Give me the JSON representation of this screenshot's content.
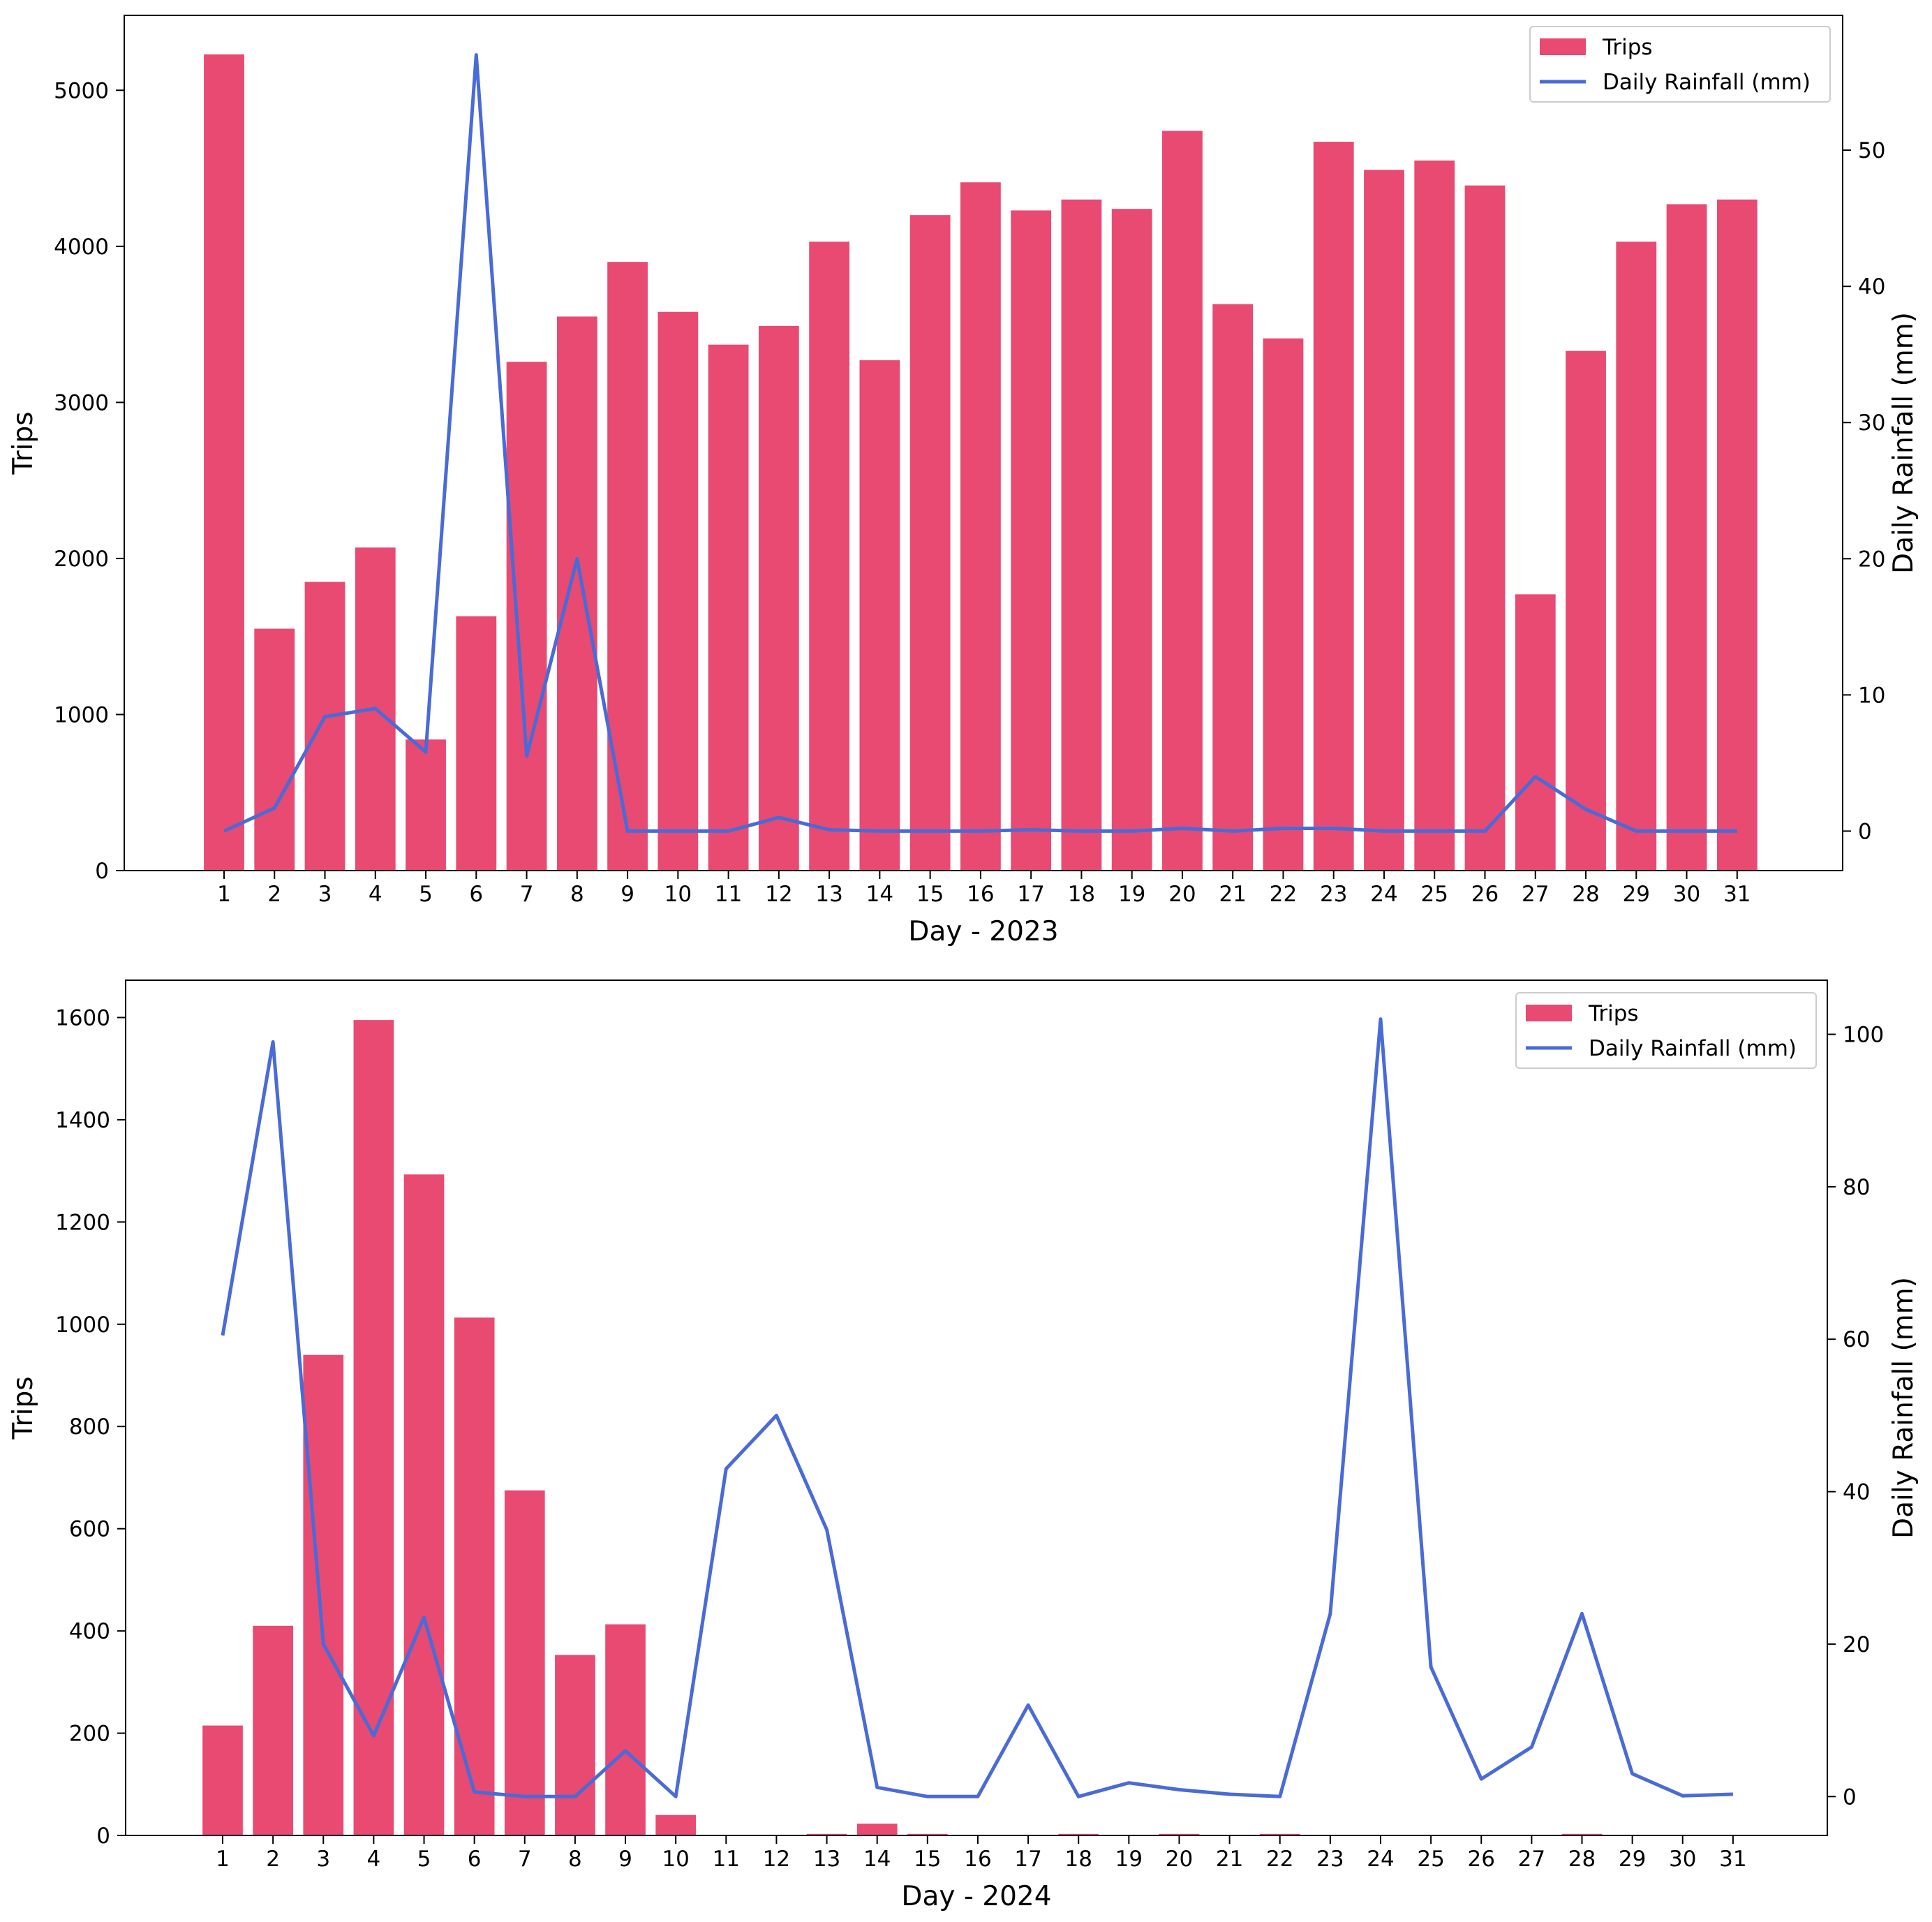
{
  "colors": {
    "bar": "#e84a72",
    "line": "#4a6bd6",
    "axis": "#000000",
    "background": "#ffffff"
  },
  "chart_data": [
    {
      "type": "bar",
      "combo": "bar+line (dual y-axis)",
      "categories": [
        "1",
        "2",
        "3",
        "4",
        "5",
        "6",
        "7",
        "8",
        "9",
        "10",
        "11",
        "12",
        "13",
        "14",
        "15",
        "16",
        "17",
        "18",
        "19",
        "20",
        "21",
        "22",
        "23",
        "24",
        "25",
        "26",
        "27",
        "28",
        "29",
        "30",
        "31"
      ],
      "series": [
        {
          "name": "Trips",
          "type": "bar",
          "axis": "left",
          "values": [
            5230,
            1550,
            1850,
            2070,
            840,
            1630,
            3260,
            3550,
            3900,
            3580,
            3370,
            3490,
            4030,
            3270,
            4200,
            4410,
            4230,
            4300,
            4240,
            4740,
            3630,
            3410,
            4670,
            4490,
            4550,
            4390,
            1770,
            3330,
            4030,
            4270,
            4300
          ]
        },
        {
          "name": "Daily Rainfall (mm)",
          "type": "line",
          "axis": "right",
          "values": [
            0,
            1.7,
            8.4,
            9.0,
            5.8,
            57,
            5.5,
            20,
            0,
            0,
            0,
            1,
            0.1,
            0,
            0,
            0,
            0.1,
            0,
            0,
            0.2,
            0,
            0.2,
            0.2,
            0,
            0,
            0,
            4,
            1.6,
            0,
            0,
            0
          ]
        }
      ],
      "xlabel": "Day - 2023",
      "ylabel": "Trips",
      "ylabel_right": "Daily Rainfall (mm)",
      "ylim": [
        0,
        5480
      ],
      "ylim_right": [
        -2.9,
        59.9
      ],
      "yticks": [
        "0",
        "1000",
        "2000",
        "3000",
        "4000",
        "5000"
      ],
      "yticks_right": [
        "0",
        "10",
        "20",
        "30",
        "40",
        "50"
      ],
      "legend": [
        "Trips",
        "Daily Rainfall (mm)"
      ],
      "legend_position": "upper right",
      "grid": false
    },
    {
      "type": "bar",
      "combo": "bar+line (dual y-axis)",
      "categories": [
        "1",
        "2",
        "3",
        "4",
        "5",
        "6",
        "7",
        "8",
        "9",
        "10",
        "11",
        "12",
        "13",
        "14",
        "15",
        "16",
        "17",
        "18",
        "19",
        "20",
        "21",
        "22",
        "23",
        "24",
        "25",
        "26",
        "27",
        "28",
        "29",
        "30",
        "31"
      ],
      "series": [
        {
          "name": "Trips",
          "type": "bar",
          "axis": "left",
          "values": [
            215,
            410,
            940,
            1595,
            1293,
            1013,
            675,
            353,
            413,
            40,
            0,
            0,
            3,
            23,
            3,
            0,
            0,
            3,
            0,
            3,
            0,
            3,
            0,
            0,
            0,
            0,
            0,
            3,
            0,
            0,
            0
          ]
        },
        {
          "name": "Daily Rainfall (mm)",
          "type": "line",
          "axis": "right",
          "values": [
            60.5,
            99,
            20,
            8,
            23.5,
            0.6,
            0,
            0,
            6,
            0,
            43,
            50,
            35,
            1.2,
            0,
            0,
            12,
            0,
            1.8,
            0.9,
            0.3,
            0,
            24,
            102,
            17,
            2.3,
            6.5,
            24,
            3,
            0.1,
            0.3
          ]
        }
      ],
      "xlabel": "Day - 2024",
      "ylabel": "Trips",
      "ylabel_right": "Daily Rainfall (mm)",
      "ylim": [
        0,
        1673
      ],
      "ylim_right": [
        -5.1,
        107.1
      ],
      "yticks": [
        "0",
        "200",
        "400",
        "600",
        "800",
        "1000",
        "1200",
        "1400",
        "1600"
      ],
      "yticks_right": [
        "0",
        "20",
        "40",
        "60",
        "80",
        "100"
      ],
      "legend": [
        "Trips",
        "Daily Rainfall (mm)"
      ],
      "legend_position": "upper right",
      "grid": false
    }
  ]
}
